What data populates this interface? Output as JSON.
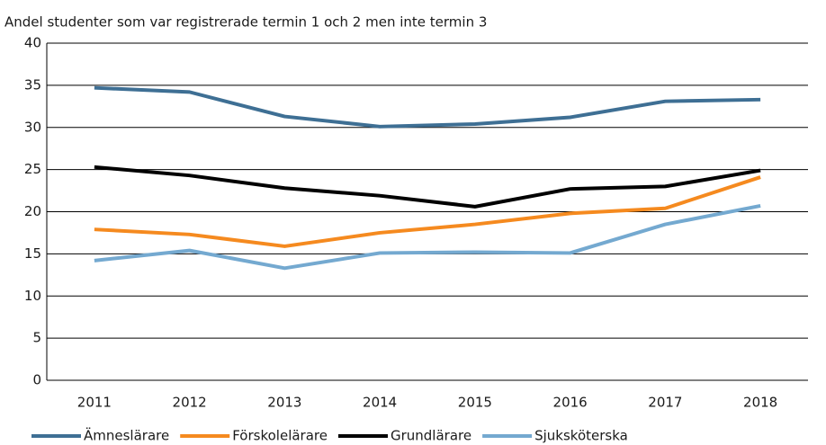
{
  "chart_data": {
    "type": "line",
    "title": "Andel studenter som var registrerade termin 1 och 2 men inte termin 3",
    "categories": [
      "2011",
      "2012",
      "2013",
      "2014",
      "2015",
      "2016",
      "2017",
      "2018"
    ],
    "series": [
      {
        "name": "Ämneslärare",
        "color": "#3e6f94",
        "values": [
          34.7,
          34.2,
          31.3,
          30.1,
          30.4,
          31.2,
          33.1,
          33.3
        ]
      },
      {
        "name": "Förskolelärare",
        "color": "#f58a1f",
        "values": [
          17.9,
          17.3,
          15.9,
          17.5,
          18.5,
          19.8,
          20.4,
          24.1
        ]
      },
      {
        "name": "Grundlärare",
        "color": "#000000",
        "values": [
          25.3,
          24.3,
          22.8,
          21.9,
          20.6,
          22.7,
          23.0,
          24.9
        ]
      },
      {
        "name": "Sjuksköterska",
        "color": "#74a9d0",
        "values": [
          14.2,
          15.4,
          13.3,
          15.1,
          15.2,
          15.1,
          18.5,
          20.7
        ]
      }
    ],
    "ylim": [
      0,
      40
    ],
    "yticks": [
      0,
      5,
      10,
      15,
      20,
      25,
      30,
      35,
      40
    ],
    "grid": true,
    "legend": "bottom"
  }
}
